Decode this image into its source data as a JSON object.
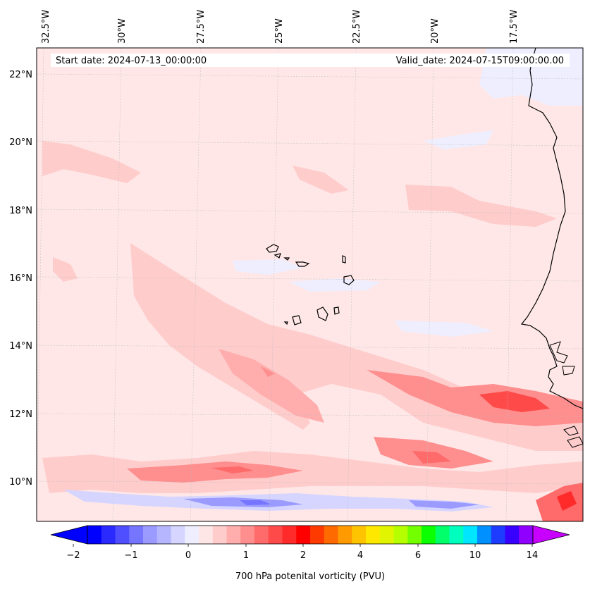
{
  "header": {
    "start_date": "Start date: 2024-07-13_00:00:00",
    "valid_date": "Valid_date: 2024-07-15T09:00:00.00"
  },
  "longitude_labels": [
    "32.5°W",
    "30°W",
    "27.5°W",
    "25°W",
    "22.5°W",
    "20°W",
    "17.5°W"
  ],
  "latitude_labels": [
    "22°N",
    "20°N",
    "18°N",
    "16°N",
    "14°N",
    "12°N",
    "10°N"
  ],
  "colorbar": {
    "title": "700 hPa potenital vorticity (PVU)",
    "tick_labels": [
      "−2",
      "−1",
      "0",
      "1",
      "2",
      "4",
      "6",
      "10",
      "14"
    ],
    "colors": [
      "#0000ff",
      "#2a2aff",
      "#4f4fff",
      "#7575ff",
      "#9a9aff",
      "#b6b6ff",
      "#d5d5ff",
      "#eeeeff",
      "#ffe6e6",
      "#ffcccc",
      "#ffadad",
      "#ff8e8e",
      "#ff6a6a",
      "#ff4a4a",
      "#ff2b2b",
      "#ff0000",
      "#ff3a00",
      "#ff6a00",
      "#ff9a00",
      "#ffc400",
      "#ffe800",
      "#e2f500",
      "#b6ff00",
      "#74ff00",
      "#0bff00",
      "#00ff6a",
      "#00ffbe",
      "#00e6ff",
      "#0090ff",
      "#1e3cff",
      "#3800ff",
      "#9000ff"
    ],
    "under_color": "#0000ff",
    "over_color": "#c800ff"
  },
  "colors": {
    "background": "#ffe7e7",
    "pv_low": "#eeeeff",
    "pv_mid": "#ffcccc",
    "pv_high": "#ff8e8e",
    "pv_max": "#ff4a4a",
    "negative": "#9a9aff",
    "coast": "#000000"
  }
}
